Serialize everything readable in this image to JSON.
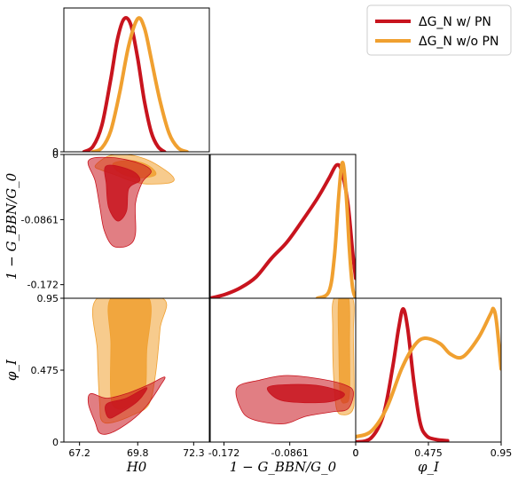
{
  "chart_data": {
    "type": "corner-plot",
    "colors": {
      "with_pn": "#c8141e",
      "without_pn": "#f0a030"
    },
    "legend": {
      "placement": "top-right",
      "entries": [
        {
          "key": "with_pn",
          "label": "ΔG_N w/ PN"
        },
        {
          "key": "without_pn",
          "label": "ΔG_N w/o PN"
        }
      ]
    },
    "axes": [
      {
        "name": "H0",
        "label": "H0",
        "range": [
          66.5,
          73.0
        ],
        "ticks": [
          67.2,
          69.8,
          72.3
        ],
        "tick_labels": [
          "67.2",
          "69.8",
          "72.3"
        ]
      },
      {
        "name": "G_BBN",
        "label": "1 − G_BBN/G_0",
        "range": [
          -0.19,
          0.0
        ],
        "ticks": [
          -0.172,
          -0.0861,
          0
        ],
        "tick_labels": [
          "-0.172",
          "-0.0861",
          "0"
        ]
      },
      {
        "name": "phi_I",
        "label": "φ_I",
        "range": [
          0.0,
          0.95
        ],
        "ticks": [
          0,
          0.475,
          0.95
        ],
        "tick_labels": [
          "0",
          "0.475",
          "0.95"
        ]
      }
    ],
    "marginals": {
      "H0": {
        "with_pn": [
          [
            67.4,
            0.0
          ],
          [
            67.8,
            0.04
          ],
          [
            68.2,
            0.2
          ],
          [
            68.6,
            0.55
          ],
          [
            68.9,
            0.85
          ],
          [
            69.2,
            1.0
          ],
          [
            69.5,
            0.95
          ],
          [
            69.8,
            0.7
          ],
          [
            70.1,
            0.38
          ],
          [
            70.4,
            0.15
          ],
          [
            70.7,
            0.04
          ],
          [
            71.0,
            0.0
          ]
        ],
        "without_pn": [
          [
            67.8,
            0.0
          ],
          [
            68.2,
            0.03
          ],
          [
            68.6,
            0.16
          ],
          [
            69.0,
            0.45
          ],
          [
            69.4,
            0.8
          ],
          [
            69.8,
            1.0
          ],
          [
            70.1,
            0.93
          ],
          [
            70.4,
            0.7
          ],
          [
            70.8,
            0.38
          ],
          [
            71.2,
            0.14
          ],
          [
            71.6,
            0.03
          ],
          [
            72.0,
            0.0
          ]
        ]
      },
      "G_BBN": {
        "with_pn": [
          [
            -0.19,
            0.0
          ],
          [
            -0.17,
            0.03
          ],
          [
            -0.15,
            0.08
          ],
          [
            -0.13,
            0.16
          ],
          [
            -0.11,
            0.3
          ],
          [
            -0.09,
            0.42
          ],
          [
            -0.07,
            0.58
          ],
          [
            -0.05,
            0.75
          ],
          [
            -0.035,
            0.9
          ],
          [
            -0.025,
            1.0
          ],
          [
            -0.018,
            0.95
          ],
          [
            -0.01,
            0.7
          ],
          [
            -0.004,
            0.35
          ],
          [
            0.0,
            0.15
          ]
        ],
        "without_pn": [
          [
            -0.05,
            0.0
          ],
          [
            -0.035,
            0.05
          ],
          [
            -0.028,
            0.3
          ],
          [
            -0.023,
            0.7
          ],
          [
            -0.019,
            0.97
          ],
          [
            -0.016,
            1.0
          ],
          [
            -0.012,
            0.75
          ],
          [
            -0.008,
            0.35
          ],
          [
            -0.004,
            0.08
          ],
          [
            0.0,
            0.0
          ]
        ]
      },
      "phi_I": {
        "with_pn": [
          [
            0.0,
            0.0
          ],
          [
            0.1,
            0.03
          ],
          [
            0.18,
            0.2
          ],
          [
            0.24,
            0.55
          ],
          [
            0.28,
            0.85
          ],
          [
            0.31,
            1.0
          ],
          [
            0.34,
            0.85
          ],
          [
            0.38,
            0.45
          ],
          [
            0.42,
            0.15
          ],
          [
            0.46,
            0.05
          ],
          [
            0.52,
            0.02
          ],
          [
            0.6,
            0.01
          ]
        ],
        "without_pn": [
          [
            0.0,
            0.04
          ],
          [
            0.1,
            0.08
          ],
          [
            0.2,
            0.25
          ],
          [
            0.3,
            0.55
          ],
          [
            0.38,
            0.72
          ],
          [
            0.45,
            0.78
          ],
          [
            0.55,
            0.74
          ],
          [
            0.62,
            0.66
          ],
          [
            0.7,
            0.64
          ],
          [
            0.8,
            0.78
          ],
          [
            0.88,
            0.96
          ],
          [
            0.9,
            1.0
          ],
          [
            0.92,
            0.9
          ],
          [
            0.95,
            0.55
          ]
        ]
      }
    },
    "contours": [
      {
        "x": "H0",
        "y": "G_BBN",
        "without_pn": {
          "outer": [
            [
              67.9,
              -0.015
            ],
            [
              68.5,
              -0.002
            ],
            [
              69.3,
              0.0
            ],
            [
              70.3,
              -0.008
            ],
            [
              71.3,
              -0.027
            ],
            [
              71.3,
              -0.037
            ],
            [
              70.2,
              -0.039
            ],
            [
              69.5,
              -0.035
            ],
            [
              68.8,
              -0.027
            ],
            [
              68.2,
              -0.021
            ]
          ],
          "inner": [
            [
              68.7,
              -0.012
            ],
            [
              69.5,
              -0.008
            ],
            [
              70.3,
              -0.015
            ],
            [
              70.6,
              -0.027
            ],
            [
              69.8,
              -0.031
            ],
            [
              69.0,
              -0.024
            ]
          ]
        },
        "with_pn": {
          "outer": [
            [
              67.6,
              -0.008
            ],
            [
              68.6,
              -0.004
            ],
            [
              69.8,
              -0.011
            ],
            [
              70.4,
              -0.022
            ],
            [
              70.0,
              -0.037
            ],
            [
              69.7,
              -0.065
            ],
            [
              69.7,
              -0.105
            ],
            [
              69.4,
              -0.12
            ],
            [
              68.7,
              -0.121
            ],
            [
              68.3,
              -0.1
            ],
            [
              68.1,
              -0.068
            ],
            [
              67.9,
              -0.035
            ]
          ],
          "inner": [
            [
              68.4,
              -0.015
            ],
            [
              69.5,
              -0.021
            ],
            [
              69.9,
              -0.034
            ],
            [
              69.4,
              -0.045
            ],
            [
              69.3,
              -0.075
            ],
            [
              68.9,
              -0.088
            ],
            [
              68.5,
              -0.07
            ],
            [
              68.4,
              -0.04
            ]
          ]
        }
      },
      {
        "x": "H0",
        "y": "phi_I",
        "without_pn": {
          "outer": [
            [
              68.0,
              0.95
            ],
            [
              70.9,
              0.95
            ],
            [
              70.8,
              0.75
            ],
            [
              70.6,
              0.45
            ],
            [
              70.3,
              0.25
            ],
            [
              69.6,
              0.18
            ],
            [
              68.7,
              0.13
            ],
            [
              68.2,
              0.14
            ],
            [
              68.1,
              0.25
            ],
            [
              68.0,
              0.6
            ]
          ],
          "inner": [
            [
              68.6,
              0.95
            ],
            [
              70.3,
              0.95
            ],
            [
              70.2,
              0.6
            ],
            [
              70.1,
              0.33
            ],
            [
              69.4,
              0.24
            ],
            [
              68.9,
              0.22
            ],
            [
              68.6,
              0.3
            ],
            [
              68.6,
              0.65
            ]
          ]
        },
        "with_pn": {
          "outer": [
            [
              67.7,
              0.32
            ],
            [
              68.4,
              0.29
            ],
            [
              69.3,
              0.32
            ],
            [
              70.3,
              0.38
            ],
            [
              71.0,
              0.43
            ],
            [
              70.8,
              0.37
            ],
            [
              70.2,
              0.24
            ],
            [
              69.5,
              0.14
            ],
            [
              68.6,
              0.06
            ],
            [
              68.1,
              0.06
            ],
            [
              67.9,
              0.13
            ],
            [
              67.6,
              0.25
            ]
          ],
          "inner": [
            [
              68.4,
              0.25
            ],
            [
              69.3,
              0.29
            ],
            [
              70.2,
              0.36
            ],
            [
              69.8,
              0.27
            ],
            [
              69.0,
              0.19
            ],
            [
              68.5,
              0.16
            ]
          ]
        }
      },
      {
        "x": "G_BBN",
        "y": "phi_I",
        "without_pn": {
          "outer": [
            [
              -0.028,
              0.95
            ],
            [
              -0.004,
              0.95
            ],
            [
              -0.003,
              0.7
            ],
            [
              -0.002,
              0.32
            ],
            [
              -0.004,
              0.21
            ],
            [
              -0.015,
              0.18
            ],
            [
              -0.025,
              0.22
            ],
            [
              -0.029,
              0.45
            ],
            [
              -0.03,
              0.75
            ]
          ],
          "inner": [
            [
              -0.022,
              0.95
            ],
            [
              -0.009,
              0.95
            ],
            [
              -0.008,
              0.65
            ],
            [
              -0.008,
              0.32
            ],
            [
              -0.013,
              0.26
            ],
            [
              -0.02,
              0.3
            ],
            [
              -0.022,
              0.6
            ]
          ]
        },
        "with_pn": {
          "outer": [
            [
              -0.155,
              0.36
            ],
            [
              -0.125,
              0.41
            ],
            [
              -0.09,
              0.44
            ],
            [
              -0.05,
              0.42
            ],
            [
              -0.015,
              0.38
            ],
            [
              -0.003,
              0.33
            ],
            [
              -0.01,
              0.22
            ],
            [
              -0.03,
              0.2
            ],
            [
              -0.065,
              0.17
            ],
            [
              -0.095,
              0.12
            ],
            [
              -0.135,
              0.15
            ],
            [
              -0.15,
              0.22
            ]
          ],
          "inner": [
            [
              -0.115,
              0.36
            ],
            [
              -0.085,
              0.38
            ],
            [
              -0.045,
              0.37
            ],
            [
              -0.015,
              0.32
            ],
            [
              -0.03,
              0.27
            ],
            [
              -0.065,
              0.26
            ],
            [
              -0.1,
              0.28
            ]
          ]
        }
      }
    ]
  }
}
